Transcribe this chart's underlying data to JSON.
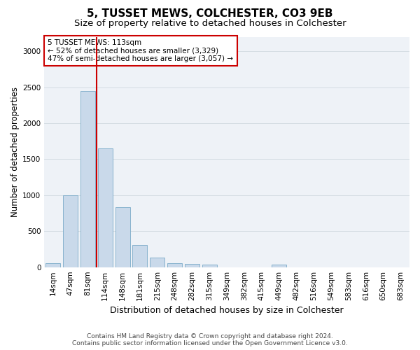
{
  "title": "5, TUSSET MEWS, COLCHESTER, CO3 9EB",
  "subtitle": "Size of property relative to detached houses in Colchester",
  "xlabel": "Distribution of detached houses by size in Colchester",
  "ylabel": "Number of detached properties",
  "footer_line1": "Contains HM Land Registry data © Crown copyright and database right 2024.",
  "footer_line2": "Contains public sector information licensed under the Open Government Licence v3.0.",
  "categories": [
    "14sqm",
    "47sqm",
    "81sqm",
    "114sqm",
    "148sqm",
    "181sqm",
    "215sqm",
    "248sqm",
    "282sqm",
    "315sqm",
    "349sqm",
    "382sqm",
    "415sqm",
    "449sqm",
    "482sqm",
    "516sqm",
    "549sqm",
    "583sqm",
    "616sqm",
    "650sqm",
    "683sqm"
  ],
  "values": [
    60,
    1000,
    2450,
    1650,
    830,
    305,
    130,
    55,
    45,
    35,
    0,
    0,
    0,
    35,
    0,
    0,
    0,
    0,
    0,
    0,
    0
  ],
  "bar_color": "#c9d9ea",
  "bar_edge_color": "#7aaac8",
  "background_color": "#eef2f7",
  "grid_color": "#d0d8e0",
  "annotation_line1": "5 TUSSET MEWS: 113sqm",
  "annotation_line2": "← 52% of detached houses are smaller (3,329)",
  "annotation_line3": "47% of semi-detached houses are larger (3,057) →",
  "annotation_box_color": "#cc0000",
  "vline_x_index": 2.5,
  "vline_color": "#cc0000",
  "ylim": [
    0,
    3200
  ],
  "yticks": [
    0,
    500,
    1000,
    1500,
    2000,
    2500,
    3000
  ],
  "title_fontsize": 11,
  "subtitle_fontsize": 9.5,
  "xlabel_fontsize": 9,
  "ylabel_fontsize": 8.5,
  "tick_fontsize": 7.5,
  "annotation_fontsize": 7.5,
  "footer_fontsize": 6.5
}
